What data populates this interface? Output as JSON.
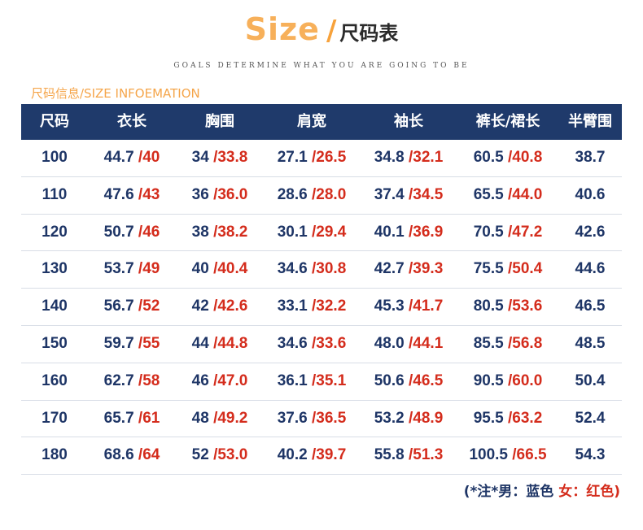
{
  "header": {
    "title_en": "Size",
    "title_slash": "/",
    "title_cn": "尺码表",
    "subtitle": "GOALS DETERMINE WHAT YOU ARE GOING TO BE"
  },
  "section_label": "尺码信息/SIZE INFOEMATION",
  "table": {
    "headers": [
      "尺码",
      "衣长",
      "胸围",
      "肩宽",
      "袖长",
      "裤长/裙长",
      "半臂围"
    ],
    "rows": [
      {
        "size": "100",
        "length": [
          "44.7",
          "/40"
        ],
        "chest": [
          "34",
          "/33.8"
        ],
        "shoulder": [
          "27.1",
          "/26.5"
        ],
        "sleeve": [
          "34.8",
          "/32.1"
        ],
        "pants": [
          "60.5",
          "/40.8"
        ],
        "arm": "38.7"
      },
      {
        "size": "110",
        "length": [
          "47.6",
          "/43"
        ],
        "chest": [
          "36",
          "/36.0"
        ],
        "shoulder": [
          "28.6",
          "/28.0"
        ],
        "sleeve": [
          "37.4",
          "/34.5"
        ],
        "pants": [
          "65.5",
          "/44.0"
        ],
        "arm": "40.6"
      },
      {
        "size": "120",
        "length": [
          "50.7",
          "/46"
        ],
        "chest": [
          "38",
          "/38.2"
        ],
        "shoulder": [
          "30.1",
          "/29.4"
        ],
        "sleeve": [
          "40.1",
          "/36.9"
        ],
        "pants": [
          "70.5",
          "/47.2"
        ],
        "arm": "42.6"
      },
      {
        "size": "130",
        "length": [
          "53.7",
          "/49"
        ],
        "chest": [
          "40",
          "/40.4"
        ],
        "shoulder": [
          "34.6",
          "/30.8"
        ],
        "sleeve": [
          "42.7",
          "/39.3"
        ],
        "pants": [
          "75.5",
          "/50.4"
        ],
        "arm": "44.6"
      },
      {
        "size": "140",
        "length": [
          "56.7",
          "/52"
        ],
        "chest": [
          "42",
          "/42.6"
        ],
        "shoulder": [
          "33.1",
          "/32.2"
        ],
        "sleeve": [
          "45.3",
          "/41.7"
        ],
        "pants": [
          "80.5",
          "/53.6"
        ],
        "arm": "46.5"
      },
      {
        "size": "150",
        "length": [
          "59.7",
          "/55"
        ],
        "chest": [
          "44",
          "/44.8"
        ],
        "shoulder": [
          "34.6",
          "/33.6"
        ],
        "sleeve": [
          "48.0",
          "/44.1"
        ],
        "pants": [
          "85.5",
          "/56.8"
        ],
        "arm": "48.5"
      },
      {
        "size": "160",
        "length": [
          "62.7",
          "/58"
        ],
        "chest": [
          "46",
          "/47.0"
        ],
        "shoulder": [
          "36.1",
          "/35.1"
        ],
        "sleeve": [
          "50.6",
          "/46.5"
        ],
        "pants": [
          "90.5",
          "/60.0"
        ],
        "arm": "50.4"
      },
      {
        "size": "170",
        "length": [
          "65.7",
          "/61"
        ],
        "chest": [
          "48",
          "/49.2"
        ],
        "shoulder": [
          "37.6",
          "/36.5"
        ],
        "sleeve": [
          "53.2",
          "/48.9"
        ],
        "pants": [
          "95.5",
          "/63.2"
        ],
        "arm": "52.4"
      },
      {
        "size": "180",
        "length": [
          "68.6",
          "/64"
        ],
        "chest": [
          "52",
          "/53.0"
        ],
        "shoulder": [
          "40.2",
          "/39.7"
        ],
        "sleeve": [
          "55.8",
          "/51.3"
        ],
        "pants": [
          "100.5",
          "/66.5"
        ],
        "arm": "54.3"
      }
    ]
  },
  "note": {
    "male": "(*注*男：蓝色",
    "female": "女：红色)"
  },
  "colors": {
    "header_bg": "#1f3a6b",
    "male_blue": "#1e3566",
    "female_red": "#d42c1c",
    "accent_orange": "#f7b05a"
  }
}
